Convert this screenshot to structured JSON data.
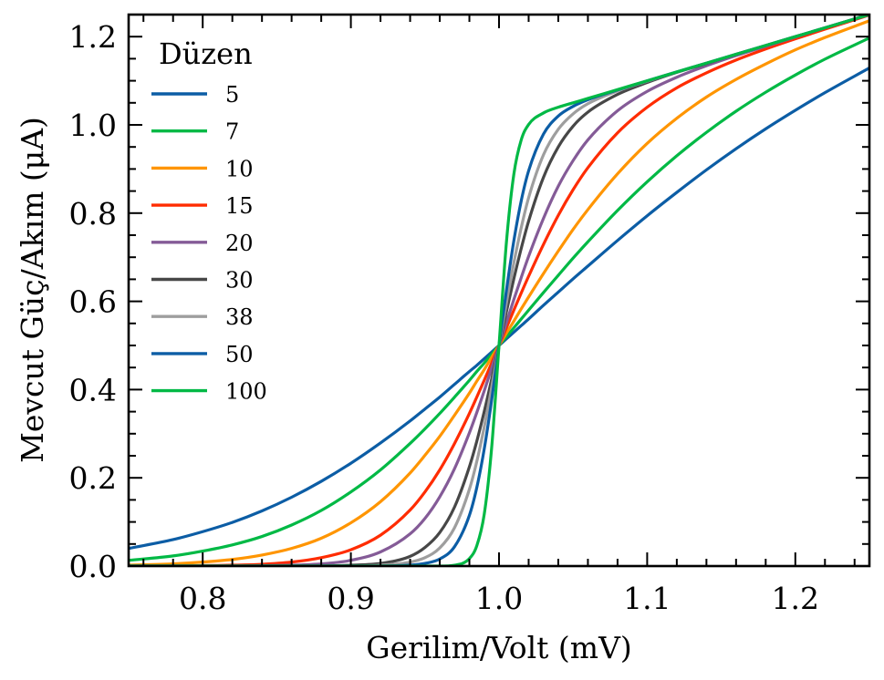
{
  "chart_data": {
    "type": "line",
    "title": "",
    "xlabel": "Gerilim/Volt (mV)",
    "ylabel": "Mevcut Güç/Akım (μA)",
    "xlim": [
      0.75,
      1.25
    ],
    "ylim": [
      0,
      1.25
    ],
    "grid": false,
    "x_ticks": [
      0.8,
      0.9,
      1.0,
      1.1,
      1.2
    ],
    "x_tick_labels": [
      "0.8",
      "0.9",
      "1.0",
      "1.1",
      "1.2"
    ],
    "x_minor_step": 0.02,
    "y_ticks": [
      0.0,
      0.2,
      0.4,
      0.6,
      0.8,
      1.0,
      1.2
    ],
    "y_tick_labels": [
      "0.0",
      "0.2",
      "0.4",
      "0.6",
      "0.8",
      "1.0",
      "1.2"
    ],
    "y_minor_step": 0.05,
    "legend": {
      "title": "Düzen",
      "placement": "upper-left"
    },
    "x": [
      0.75,
      0.78,
      0.8,
      0.82,
      0.84,
      0.86,
      0.88,
      0.9,
      0.92,
      0.94,
      0.95,
      0.96,
      0.97,
      0.98,
      0.985,
      0.99,
      0.995,
      1.0,
      1.005,
      1.01,
      1.015,
      1.02,
      1.03,
      1.04,
      1.05,
      1.06,
      1.08,
      1.1,
      1.12,
      1.14,
      1.16,
      1.18,
      1.2,
      1.22,
      1.25
    ],
    "series": [
      {
        "name": "5",
        "color": "#0C5DA5",
        "values": [
          0.04,
          0.06,
          0.078,
          0.099,
          0.125,
          0.156,
          0.192,
          0.233,
          0.279,
          0.329,
          0.356,
          0.383,
          0.412,
          0.441,
          0.455,
          0.47,
          0.485,
          0.5,
          0.515,
          0.53,
          0.545,
          0.56,
          0.591,
          0.621,
          0.651,
          0.68,
          0.738,
          0.794,
          0.847,
          0.898,
          0.946,
          0.991,
          1.033,
          1.073,
          1.129
        ]
      },
      {
        "name": "7",
        "color": "#00B945",
        "values": [
          0.013,
          0.023,
          0.034,
          0.048,
          0.067,
          0.093,
          0.126,
          0.168,
          0.218,
          0.278,
          0.311,
          0.346,
          0.383,
          0.421,
          0.441,
          0.46,
          0.48,
          0.5,
          0.52,
          0.54,
          0.56,
          0.58,
          0.62,
          0.659,
          0.698,
          0.735,
          0.806,
          0.871,
          0.93,
          0.983,
          1.031,
          1.074,
          1.113,
          1.149,
          1.197
        ]
      },
      {
        "name": "10",
        "color": "#FF9500",
        "values": [
          0.002,
          0.005,
          0.009,
          0.015,
          0.025,
          0.04,
          0.063,
          0.098,
          0.146,
          0.211,
          0.251,
          0.294,
          0.342,
          0.392,
          0.419,
          0.445,
          0.473,
          0.5,
          0.528,
          0.555,
          0.583,
          0.61,
          0.663,
          0.714,
          0.763,
          0.808,
          0.889,
          0.958,
          1.015,
          1.063,
          1.103,
          1.138,
          1.17,
          1.198,
          1.236
        ]
      },
      {
        "name": "15",
        "color": "#FF2C00",
        "values": [
          0.0,
          0.0,
          0.001,
          0.002,
          0.004,
          0.009,
          0.019,
          0.037,
          0.07,
          0.127,
          0.168,
          0.218,
          0.278,
          0.346,
          0.383,
          0.421,
          0.46,
          0.5,
          0.54,
          0.58,
          0.619,
          0.657,
          0.729,
          0.795,
          0.853,
          0.903,
          0.982,
          1.04,
          1.084,
          1.118,
          1.147,
          1.172,
          1.195,
          1.217,
          1.249
        ]
      },
      {
        "name": "20",
        "color": "#845B97",
        "values": [
          0.0,
          0.0,
          0.0,
          0.0,
          0.001,
          0.002,
          0.005,
          0.013,
          0.032,
          0.073,
          0.108,
          0.157,
          0.221,
          0.302,
          0.348,
          0.397,
          0.448,
          0.5,
          0.552,
          0.604,
          0.654,
          0.702,
          0.788,
          0.861,
          0.919,
          0.966,
          1.032,
          1.076,
          1.108,
          1.134,
          1.157,
          1.178,
          1.199,
          1.22,
          1.25
        ]
      },
      {
        "name": "30",
        "color": "#474747",
        "values": [
          0.0,
          0.0,
          0.0,
          0.0,
          0.0,
          0.0,
          0.0,
          0.002,
          0.006,
          0.022,
          0.042,
          0.076,
          0.134,
          0.225,
          0.283,
          0.35,
          0.423,
          0.5,
          0.577,
          0.651,
          0.72,
          0.782,
          0.881,
          0.95,
          0.997,
          1.029,
          1.069,
          1.096,
          1.119,
          1.139,
          1.16,
          1.18,
          1.2,
          1.22,
          1.25
        ]
      },
      {
        "name": "38",
        "color": "#9E9E9E",
        "values": [
          0.0,
          0.0,
          0.0,
          0.0,
          0.0,
          0.0,
          0.0,
          0.0,
          0.002,
          0.009,
          0.019,
          0.041,
          0.087,
          0.174,
          0.237,
          0.315,
          0.404,
          0.5,
          0.597,
          0.687,
          0.767,
          0.835,
          0.932,
          0.99,
          1.025,
          1.048,
          1.077,
          1.099,
          1.12,
          1.14,
          1.16,
          1.18,
          1.2,
          1.22,
          1.25
        ]
      },
      {
        "name": "50",
        "color": "#0C5DA5",
        "values": [
          0.0,
          0.0,
          0.0,
          0.0,
          0.0,
          0.0,
          0.0,
          0.0,
          0.0,
          0.002,
          0.006,
          0.016,
          0.044,
          0.115,
          0.178,
          0.265,
          0.375,
          0.5,
          0.625,
          0.737,
          0.828,
          0.896,
          0.979,
          1.02,
          1.042,
          1.057,
          1.079,
          1.1,
          1.12,
          1.14,
          1.16,
          1.18,
          1.2,
          1.22,
          1.25
        ]
      },
      {
        "name": "100",
        "color": "#00B945",
        "values": [
          0.0,
          0.0,
          0.0,
          0.0,
          0.0,
          0.0,
          0.0,
          0.0,
          0.0,
          0.0,
          0.0,
          0.0,
          0.002,
          0.017,
          0.046,
          0.117,
          0.267,
          0.5,
          0.734,
          0.888,
          0.966,
          1.001,
          1.027,
          1.04,
          1.05,
          1.06,
          1.08,
          1.1,
          1.12,
          1.14,
          1.16,
          1.18,
          1.2,
          1.22,
          1.25
        ]
      }
    ]
  }
}
